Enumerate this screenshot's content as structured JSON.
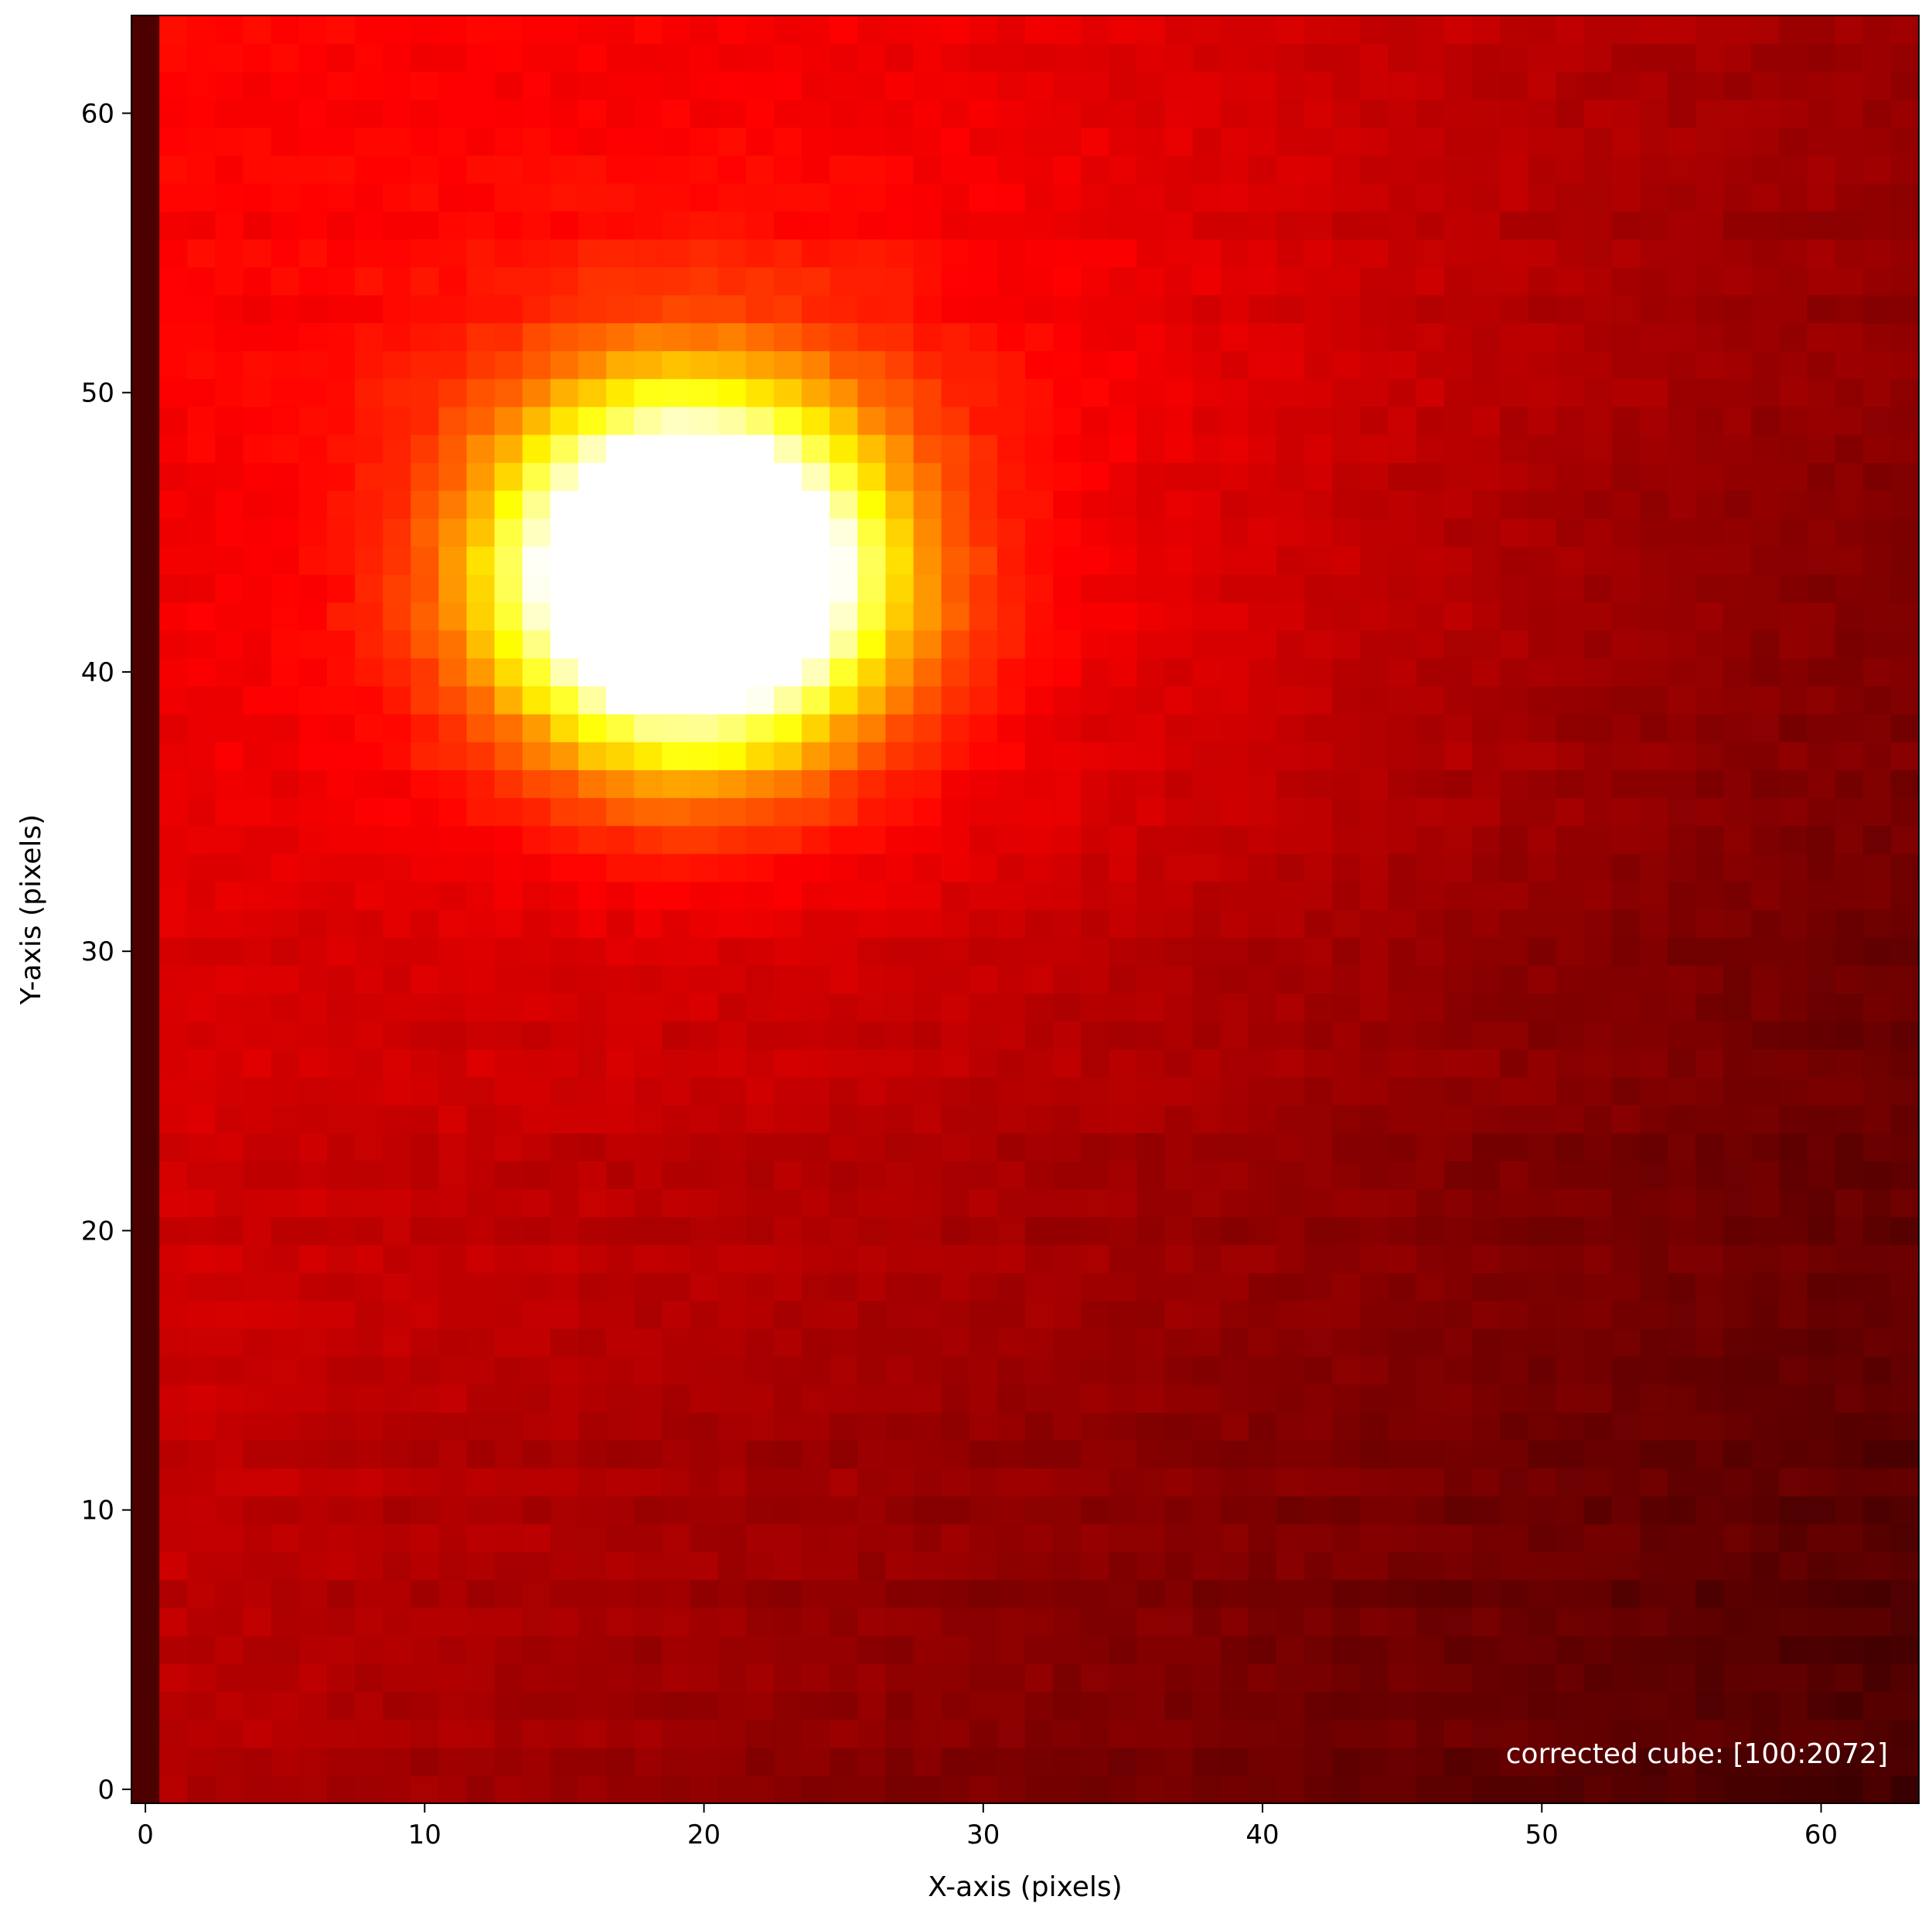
{
  "chart_data": {
    "type": "heatmap",
    "title": "",
    "xlabel": "X-axis (pixels)",
    "ylabel": "Y-axis (pixels)",
    "xlim": [
      -0.5,
      63.5
    ],
    "ylim": [
      -0.5,
      63.5
    ],
    "grid": "off",
    "colormap": "hot",
    "color_range": [
      0,
      1
    ],
    "x_ticks": [
      0,
      10,
      20,
      30,
      40,
      50,
      60
    ],
    "y_ticks": [
      0,
      10,
      20,
      30,
      40,
      50,
      60
    ],
    "x_tick_labels": [
      "0",
      "10",
      "20",
      "30",
      "40",
      "50",
      "60"
    ],
    "y_tick_labels": [
      "0",
      "10",
      "20",
      "30",
      "40",
      "50",
      "60"
    ],
    "grid_size": [
      64,
      64
    ],
    "annotation": "corrected cube: [100:2072]",
    "source": {
      "center": [
        19.5,
        43.5
      ],
      "sigma": [
        4.3,
        4.0
      ],
      "amplitude": 1.25,
      "halo_sigma": [
        8.0,
        7.0
      ],
      "halo_amplitude": 0.12
    },
    "background": {
      "base": 0.26,
      "x_gradient": -0.0025,
      "y_gradient": 0.0018,
      "bump_center": [
        30,
        45
      ],
      "bump_sigma": [
        14,
        14
      ],
      "bump_amplitude": 0.08,
      "left_edge_column_value": 0.11
    }
  }
}
